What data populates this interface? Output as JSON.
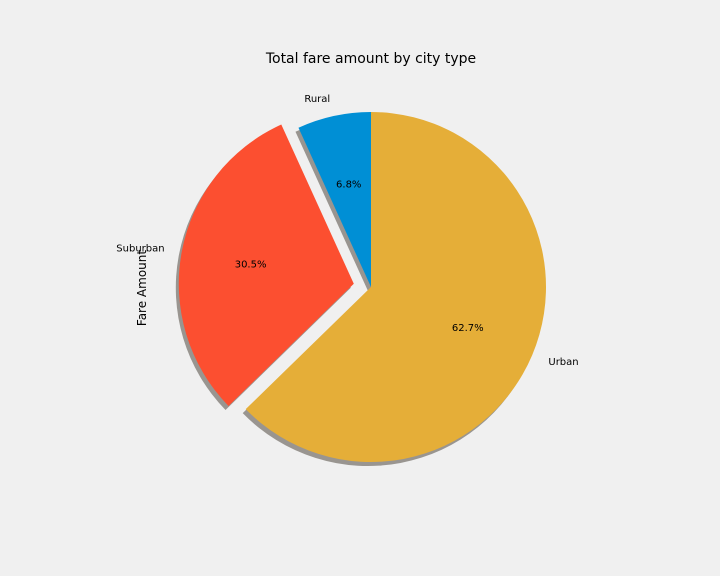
{
  "chart_data": {
    "type": "pie",
    "title": "Total fare amount by city type",
    "ylabel": "Fare Amount",
    "start_angle_deg": 90,
    "direction": "counterclockwise",
    "shadow": true,
    "slices": [
      {
        "label": "Rural",
        "value": 6.8,
        "pct_label": "6.8%",
        "color": "#008fd5",
        "explode": 0
      },
      {
        "label": "Suburban",
        "value": 30.5,
        "pct_label": "30.5%",
        "color": "#fc4f30",
        "explode": 0.1
      },
      {
        "label": "Urban",
        "value": 62.7,
        "pct_label": "62.7%",
        "color": "#e5ae38",
        "explode": 0
      }
    ]
  }
}
